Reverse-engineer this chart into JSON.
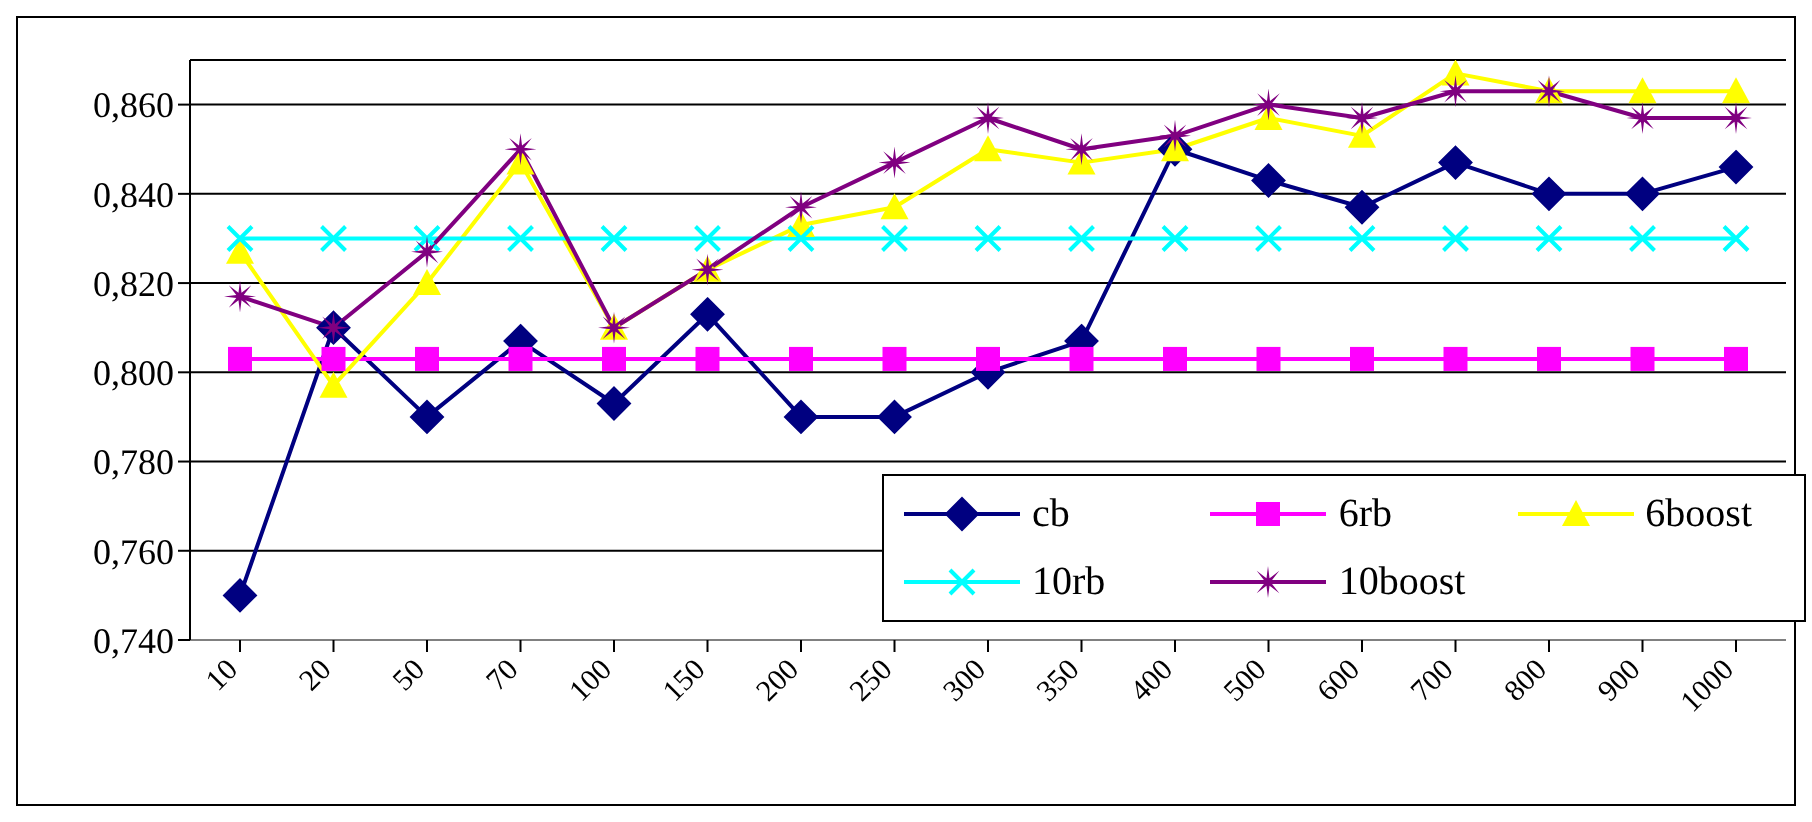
{
  "chart_data": {
    "type": "line",
    "categories": [
      "10",
      "20",
      "50",
      "70",
      "100",
      "150",
      "200",
      "250",
      "300",
      "350",
      "400",
      "500",
      "600",
      "700",
      "800",
      "900",
      "1000"
    ],
    "series": [
      {
        "name": "cb",
        "color": "#000080",
        "marker": "diamond",
        "values": [
          0.75,
          0.81,
          0.79,
          0.807,
          0.793,
          0.813,
          0.79,
          0.79,
          0.8,
          0.807,
          0.85,
          0.843,
          0.837,
          0.847,
          0.84,
          0.84,
          0.846
        ]
      },
      {
        "name": "6rb",
        "color": "#ff00ff",
        "marker": "square",
        "values": [
          0.803,
          0.803,
          0.803,
          0.803,
          0.803,
          0.803,
          0.803,
          0.803,
          0.803,
          0.803,
          0.803,
          0.803,
          0.803,
          0.803,
          0.803,
          0.803,
          0.803
        ]
      },
      {
        "name": "6boost",
        "color": "#ffff00",
        "marker": "triangle",
        "values": [
          0.827,
          0.797,
          0.82,
          0.847,
          0.81,
          0.823,
          0.833,
          0.837,
          0.85,
          0.847,
          0.85,
          0.857,
          0.853,
          0.867,
          0.863,
          0.863,
          0.863
        ]
      },
      {
        "name": "10rb",
        "color": "#00ffff",
        "marker": "cross",
        "values": [
          0.83,
          0.83,
          0.83,
          0.83,
          0.83,
          0.83,
          0.83,
          0.83,
          0.83,
          0.83,
          0.83,
          0.83,
          0.83,
          0.83,
          0.83,
          0.83,
          0.83
        ]
      },
      {
        "name": "10boost",
        "color": "#800080",
        "marker": "star",
        "values": [
          0.817,
          0.81,
          0.827,
          0.85,
          0.81,
          0.823,
          0.837,
          0.847,
          0.857,
          0.85,
          0.853,
          0.86,
          0.857,
          0.863,
          0.863,
          0.857,
          0.857
        ]
      }
    ],
    "ylim": [
      0.74,
      0.87
    ],
    "yticks": [
      {
        "value": 0.74,
        "label": "0,740"
      },
      {
        "value": 0.76,
        "label": "0,760"
      },
      {
        "value": 0.78,
        "label": "0,780"
      },
      {
        "value": 0.8,
        "label": "0,800"
      },
      {
        "value": 0.82,
        "label": "0,820"
      },
      {
        "value": 0.84,
        "label": "0,840"
      },
      {
        "value": 0.86,
        "label": "0,860"
      }
    ],
    "grid": "y",
    "legend": "bottom right",
    "line_style": "solid"
  }
}
